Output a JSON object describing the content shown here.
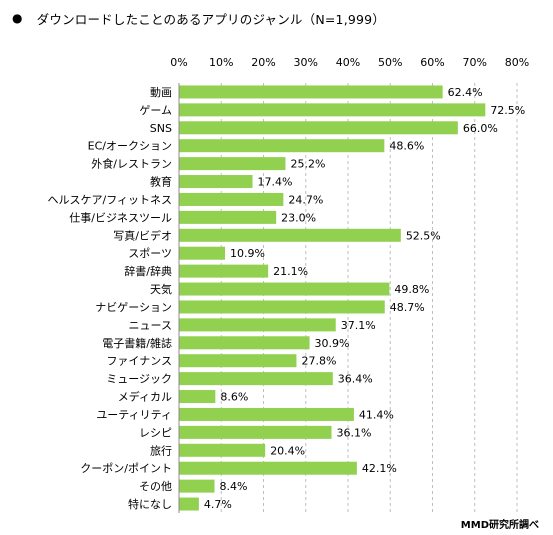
{
  "title_bullet": "●",
  "title": "ダウンロードしたことのあるアプリのジャンル（N=1,999）",
  "source": "MMD研究所調べ",
  "chart_data": {
    "type": "bar",
    "orientation": "horizontal",
    "xlim": [
      0,
      80
    ],
    "xticks": [
      0,
      10,
      20,
      30,
      40,
      50,
      60,
      70,
      80
    ],
    "tick_suffix": "%",
    "value_suffix": "%",
    "bar_color": "#92D050",
    "grid": true,
    "grid_style": "dashed",
    "tick_position": "top",
    "categories": [
      "動画",
      "ゲーム",
      "SNS",
      "EC/オークション",
      "外食/レストラン",
      "教育",
      "ヘルスケア/フィットネス",
      "仕事/ビジネスツール",
      "写真/ビデオ",
      "スポーツ",
      "辞書/辞典",
      "天気",
      "ナビゲーション",
      "ニュース",
      "電子書籍/雑誌",
      "ファイナンス",
      "ミュージック",
      "メディカル",
      "ユーティリティ",
      "レシピ",
      "旅行",
      "クーポン/ポイント",
      "その他",
      "特になし"
    ],
    "values": [
      62.4,
      72.5,
      66.0,
      48.6,
      25.2,
      17.4,
      24.7,
      23.0,
      52.5,
      10.9,
      21.1,
      49.8,
      48.7,
      37.1,
      30.9,
      27.8,
      36.4,
      8.6,
      41.4,
      36.1,
      20.4,
      42.1,
      8.4,
      4.7
    ],
    "value_labels": [
      "62.4%",
      "72.5%",
      "66.0%",
      "48.6%",
      "25.2%",
      "17.4%",
      "24.7%",
      "23.0%",
      "52.5%",
      "10.9%",
      "21.1%",
      "49.8%",
      "48.7%",
      "37.1%",
      "30.9%",
      "27.8%",
      "36.4%",
      "8.6%",
      "41.4%",
      "36.1%",
      "20.4%",
      "42.1%",
      "8.4%",
      "4.7%"
    ]
  }
}
